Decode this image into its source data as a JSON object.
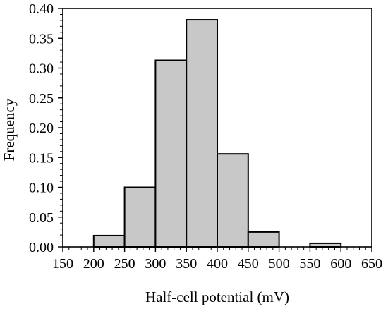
{
  "colors": {
    "bar_fill": "#c8c8c8",
    "bar_stroke": "#000000",
    "axis": "#000000",
    "background": "#ffffff"
  },
  "chart_data": {
    "type": "bar",
    "subtype": "histogram",
    "title": "",
    "xlabel": "Half-cell potential (mV)",
    "ylabel": "Frequency",
    "xlim": [
      150,
      650
    ],
    "ylim": [
      0,
      0.4
    ],
    "x_ticks": [
      150,
      200,
      250,
      300,
      350,
      400,
      450,
      500,
      550,
      600,
      650
    ],
    "x_tick_labels": [
      "150",
      "200",
      "250",
      "300",
      "350",
      "400",
      "450",
      "500",
      "550",
      "600",
      "650"
    ],
    "y_ticks": [
      0,
      0.05,
      0.1,
      0.15,
      0.2,
      0.25,
      0.3,
      0.35,
      0.4
    ],
    "y_tick_labels": [
      "0.00",
      "0.05",
      "0.10",
      "0.15",
      "0.20",
      "0.25",
      "0.30",
      "0.35",
      "0.40"
    ],
    "bin_width": 50,
    "bins": [
      {
        "x0": 200,
        "x1": 250,
        "value": 0.019
      },
      {
        "x0": 250,
        "x1": 300,
        "value": 0.1
      },
      {
        "x0": 300,
        "x1": 350,
        "value": 0.313
      },
      {
        "x0": 350,
        "x1": 400,
        "value": 0.381
      },
      {
        "x0": 400,
        "x1": 450,
        "value": 0.156
      },
      {
        "x0": 450,
        "x1": 500,
        "value": 0.025
      },
      {
        "x0": 550,
        "x1": 600,
        "value": 0.006
      }
    ],
    "grid": false,
    "legend": "none"
  }
}
